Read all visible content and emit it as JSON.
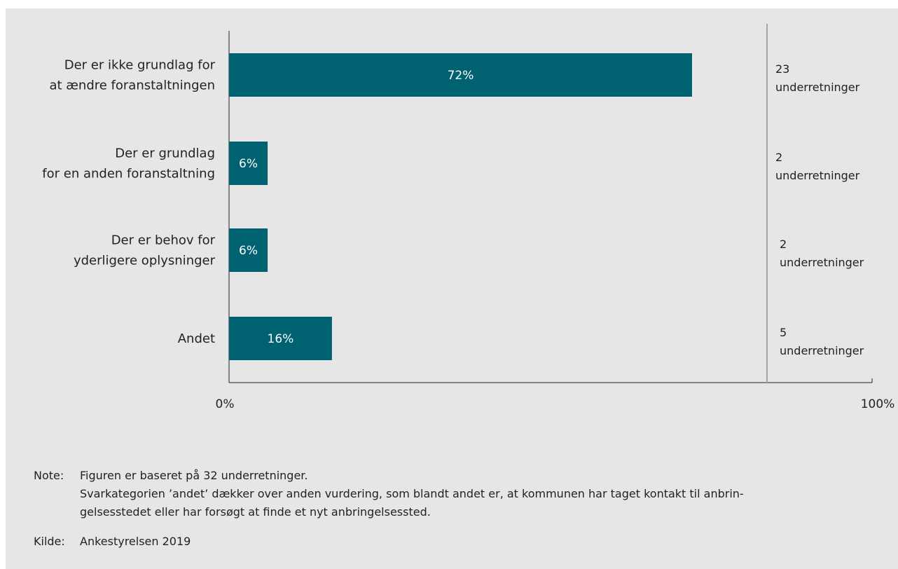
{
  "chart_data": {
    "type": "bar",
    "orientation": "horizontal",
    "categories": [
      [
        "Der er ikke grundlag for",
        "at ændre foranstaltningen"
      ],
      [
        "Der er grundlag",
        "for en anden foranstaltning"
      ],
      [
        "Der er behov for",
        "yderligere oplysninger"
      ],
      [
        "Andet"
      ]
    ],
    "values": [
      72,
      6,
      6,
      16
    ],
    "value_labels": [
      "72%",
      "6%",
      "6%",
      "16%"
    ],
    "counts": [
      [
        "23",
        "underretninger"
      ],
      [
        "2",
        "underretninger"
      ],
      [
        "2",
        "underretninger"
      ],
      [
        "5",
        "underretninger"
      ]
    ],
    "xlim": [
      0,
      100
    ],
    "xticks": [
      "0%",
      "100%"
    ],
    "bar_color": "#006170",
    "grid": false
  },
  "notes": {
    "note_key": "Note:",
    "note_lines": [
      "Figuren er baseret på 32 underretninger.",
      "Svarkategorien ’andet’ dækker over anden vurdering, som blandt andet er, at kommunen har taget kontakt til anbrin-",
      "gelsesstedet eller har forsøgt at finde et nyt anbringelsessted."
    ],
    "source_key": "Kilde:",
    "source_text": "Ankestyrelsen 2019"
  }
}
